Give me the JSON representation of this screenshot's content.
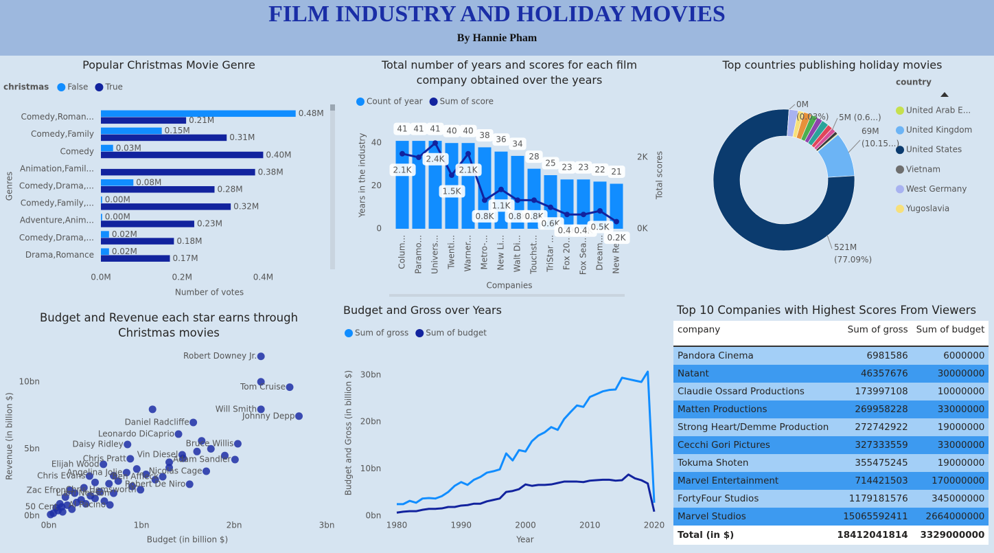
{
  "header": {
    "title": "FILM INDUSTRY AND HOLIDAY MOVIES",
    "subtitle": "By Hannie Pham"
  },
  "chart_data": [
    {
      "type": "bar",
      "orientation": "horizontal",
      "title": "Popular Christmas Movie Genre",
      "legend_title": "christmas",
      "x_label": "Number of votes",
      "y_label": "Genres",
      "categories": [
        "Comedy,Roman...",
        "Comedy,Family",
        "Comedy",
        "Animation,Famil...",
        "Comedy,Drama,...",
        "Comedy,Family,...",
        "Adventure,Anim...",
        "Comedy,Drama,...",
        "Drama,Romance"
      ],
      "series": [
        {
          "name": "False",
          "color": "#118dff",
          "values": [
            480000,
            150000,
            30000,
            null,
            80000,
            3000,
            3000,
            20000,
            20000
          ],
          "value_labels": [
            "0.48M",
            "0.15M",
            "0.03M",
            null,
            "0.08M",
            "0.00M",
            "0.00M",
            "0.02M",
            "0.02M"
          ]
        },
        {
          "name": "True",
          "color": "#12239e",
          "values": [
            210000,
            310000,
            400000,
            380000,
            280000,
            320000,
            230000,
            180000,
            170000
          ],
          "value_labels": [
            "0.21M",
            "0.31M",
            "0.40M",
            "0.38M",
            "0.28M",
            "0.32M",
            "0.23M",
            "0.18M",
            "0.17M"
          ]
        }
      ],
      "xlim": [
        0,
        560000
      ],
      "xticks": [
        {
          "value": 0,
          "label": "0.0M"
        },
        {
          "value": 200000,
          "label": "0.2M"
        },
        {
          "value": 400000,
          "label": "0.4M"
        }
      ]
    },
    {
      "type": "bar-line",
      "title": "Total number of years and scores for each film company obtained over the years",
      "x_label": "Companies",
      "y_label": "Years in the industry",
      "y2_label": "Total scores",
      "categories": [
        "Colum...",
        "Paramo...",
        "Univers...",
        "Twenti...",
        "Warner...",
        "Metro-...",
        "New Li...",
        "Walt Di...",
        "Touchst...",
        "TriStar ...",
        "Fox 20...",
        "Fox Sea...",
        "Dream...",
        "New Re..."
      ],
      "series": [
        {
          "name": "Count of year",
          "type": "bar",
          "color": "#118dff",
          "values": [
            41,
            41,
            41,
            40,
            40,
            38,
            36,
            34,
            28,
            25,
            23,
            23,
            22,
            21
          ]
        },
        {
          "name": "Sum of score",
          "type": "line",
          "axis": "y2",
          "color": "#12239e",
          "values": [
            2100,
            2000,
            2400,
            1500,
            2100,
            800,
            1100,
            800,
            800,
            600,
            400,
            400,
            500,
            200
          ],
          "value_labels": [
            "2.1K",
            null,
            "2.4K",
            "1.5K",
            "2.1K",
            "0.8K",
            "1.1K",
            "0.8K",
            "0.8K",
            "0.6K",
            "0.4K",
            "0.4K",
            "0.5K",
            "0.2K"
          ]
        }
      ],
      "ylim": [
        0,
        50
      ],
      "yticks": [
        0,
        20,
        40
      ],
      "y2lim": [
        0,
        3000
      ],
      "y2ticks": [
        {
          "value": 0,
          "label": "0K"
        },
        {
          "value": 2000,
          "label": "2K"
        }
      ]
    },
    {
      "type": "donut",
      "title": "Top countries publishing holiday movies",
      "legend_title": "country",
      "categories": [
        "United Arab E...",
        "United Kingdom",
        "United States",
        "Vietnam",
        "West Germany",
        "Yugoslavia",
        null,
        null,
        null,
        null,
        null,
        null,
        null
      ],
      "values": [
        1.5,
        68.6,
        521,
        0.2,
        14,
        9,
        12,
        10,
        9,
        11,
        8,
        6.9,
        4.6
      ],
      "colors": [
        "#c6e04e",
        "#6cb4f5",
        "#0b3b6e",
        "#6e6e6e",
        "#a8b2f0",
        "#f7e07a",
        "#e8913b",
        "#4caf50",
        "#8e44ad",
        "#2ba39a",
        "#e0455a",
        "#d64f9a",
        "#3b3b3b"
      ],
      "value_labels": [
        null,
        "69M (10.15...)",
        "521M (77.09%)",
        "0M (0.03%)",
        null,
        null,
        null,
        null,
        null,
        null,
        null,
        null,
        "5M (0.6...)"
      ]
    },
    {
      "type": "scatter",
      "title": "Budget and Revenue each star earns through Christmas movies",
      "x_label": "Budget (in billion $)",
      "y_label": "Revenue (in billion $)",
      "color": "#1f2fa6",
      "x": [
        2.29,
        2.6,
        2.7,
        2.29,
        1.56,
        2.04,
        1.4,
        2.01,
        1.44,
        0.85,
        0.88,
        1.7,
        0.59,
        0.84,
        1.23,
        0.44,
        0.99,
        0.23,
        0.7,
        0.14,
        0.66,
        1.52,
        0.05,
        0.1,
        0.15,
        0.2,
        0.25,
        0.3,
        0.35,
        0.4,
        0.45,
        0.5,
        0.55,
        0.6,
        0.02,
        0.08,
        0.12,
        0.18,
        0.28,
        0.38,
        0.65,
        0.75,
        0.9,
        1.05,
        1.15,
        1.3,
        1.45,
        1.6,
        1.75,
        0.95,
        2.29,
        1.12,
        1.65,
        1.3,
        0.7,
        0.5,
        1.9
      ],
      "values": [
        11.9,
        9.6,
        7.44,
        7.95,
        6.97,
        5.38,
        6.1,
        4.2,
        4.56,
        5.33,
        4.26,
        3.33,
        3.85,
        3.23,
        2.92,
        2.97,
        1.95,
        1.9,
        1.69,
        0.67,
        0.82,
        2.36,
        0.2,
        0.4,
        0.3,
        0.8,
        0.5,
        1.0,
        1.2,
        0.9,
        1.5,
        1.3,
        1.8,
        1.1,
        0.1,
        0.6,
        0.9,
        1.4,
        1.7,
        2.1,
        2.4,
        2.6,
        2.2,
        3.1,
        2.7,
        3.6,
        4.3,
        4.8,
        5.0,
        3.5,
        10.0,
        7.95,
        5.6,
        4.0,
        3.0,
        2.5,
        4.5
      ],
      "labels": [
        "Robert Downey Jr.",
        "Tom Cruise",
        "Johnny Depp",
        "Will Smith",
        "Daniel Radcliffe",
        "Bruce Willis",
        "Leonardo DiCaprio",
        "Adam Sandler",
        "Vin Diesel",
        "Daisy Ridley",
        "Chris Pratt",
        "Nicolas Cage",
        "Elijah Wood",
        "Angelina Jolie",
        "Ben Affleck",
        "Chris Evans",
        "Chris Hemsworth",
        "Zac Efron",
        "Liam Neeson",
        "50 Cent",
        "Al Pacino",
        "Robert De Niro",
        null,
        null,
        null,
        null,
        null,
        null,
        null,
        null,
        null,
        null,
        null,
        null,
        null,
        null,
        null,
        null,
        null,
        null,
        null,
        null,
        null,
        null,
        null,
        null,
        null,
        null,
        null,
        null,
        null,
        null,
        null,
        null,
        null,
        null,
        null
      ],
      "xlim": [
        0,
        3.05
      ],
      "xticks": [
        {
          "value": 0,
          "label": "0bn"
        },
        {
          "value": 1,
          "label": "1bn"
        },
        {
          "value": 2,
          "label": "2bn"
        },
        {
          "value": 3,
          "label": "3bn"
        }
      ],
      "ylim": [
        0,
        12.5
      ],
      "yticks": [
        {
          "value": 0,
          "label": "0bn"
        },
        {
          "value": 5,
          "label": "5bn"
        },
        {
          "value": 10,
          "label": "10bn"
        }
      ]
    },
    {
      "type": "line",
      "title": "Budget and Gross over Years",
      "x_label": "Year",
      "y_label": "Budget and Gross (in billion $)",
      "x": [
        1980,
        1981,
        1982,
        1983,
        1984,
        1985,
        1986,
        1987,
        1988,
        1989,
        1990,
        1991,
        1992,
        1993,
        1994,
        1995,
        1996,
        1997,
        1998,
        1999,
        2000,
        2001,
        2002,
        2003,
        2004,
        2005,
        2006,
        2007,
        2008,
        2009,
        2010,
        2011,
        2012,
        2013,
        2014,
        2015,
        2016,
        2017,
        2018,
        2019,
        2020
      ],
      "series": [
        {
          "name": "Sum of gross",
          "color": "#118dff",
          "values": [
            2.5,
            2.5,
            3.2,
            2.8,
            3.7,
            3.8,
            3.7,
            4.2,
            5.1,
            6.4,
            7.2,
            6.6,
            7.7,
            8.3,
            9.2,
            9.5,
            9.9,
            13.3,
            11.8,
            14.0,
            13.7,
            15.9,
            17.1,
            17.8,
            18.9,
            18.3,
            20.6,
            22.1,
            23.5,
            23.2,
            25.3,
            25.9,
            26.5,
            26.8,
            26.9,
            29.4,
            29.1,
            28.8,
            28.5,
            30.7,
            2.8
          ]
        },
        {
          "name": "Sum of budget",
          "color": "#12239e",
          "values": [
            0.7,
            0.9,
            1.0,
            1.0,
            1.3,
            1.5,
            1.5,
            1.6,
            1.9,
            1.9,
            2.2,
            2.3,
            2.6,
            2.6,
            3.1,
            3.4,
            3.7,
            5.1,
            5.3,
            5.7,
            6.7,
            6.4,
            6.6,
            6.6,
            6.7,
            7.0,
            7.3,
            7.3,
            7.3,
            7.2,
            7.5,
            7.6,
            7.7,
            7.7,
            7.5,
            7.6,
            8.8,
            8.0,
            7.6,
            6.9,
            0.9
          ]
        }
      ],
      "xlim": [
        1979.5,
        2020.5
      ],
      "xticks": [
        1980,
        1990,
        2000,
        2010,
        2020
      ],
      "ylim": [
        0,
        34
      ],
      "yticks": [
        {
          "value": 0,
          "label": "0bn"
        },
        {
          "value": 10,
          "label": "10bn"
        },
        {
          "value": 20,
          "label": "20bn"
        },
        {
          "value": 30,
          "label": "30bn"
        }
      ]
    }
  ],
  "table": {
    "title": "Top 10 Companies with Highest Scores From Viewers",
    "columns": [
      "company",
      "Sum of gross",
      "Sum of budget"
    ],
    "rows": [
      [
        "Pandora Cinema",
        6981586,
        6000000
      ],
      [
        "Natant",
        46357676,
        30000000
      ],
      [
        "Claudie Ossard Productions",
        173997108,
        10000000
      ],
      [
        "Matten Productions",
        269958228,
        33000000
      ],
      [
        "Strong Heart/Demme Production",
        272742922,
        19000000
      ],
      [
        "Cecchi Gori Pictures",
        327333559,
        33000000
      ],
      [
        "Tokuma Shoten",
        355475245,
        19000000
      ],
      [
        "Marvel Entertainment",
        714421503,
        170000000
      ],
      [
        "FortyFour Studios",
        1179181576,
        345000000
      ],
      [
        "Marvel Studios",
        15065592411,
        2664000000
      ]
    ],
    "total": [
      "Total (in $)",
      18412041814,
      3329000000
    ]
  }
}
